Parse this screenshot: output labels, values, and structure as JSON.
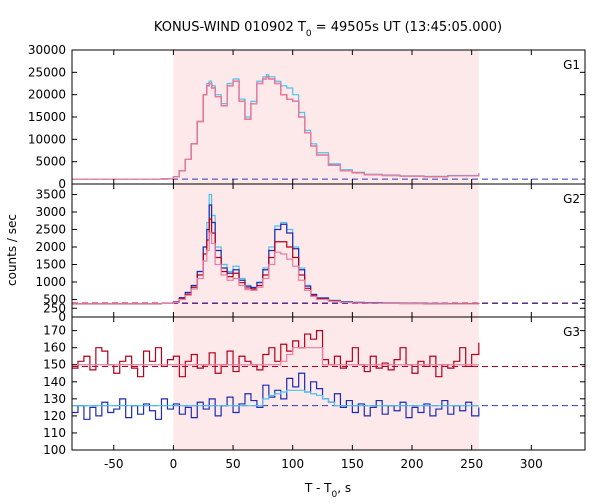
{
  "title_main": "KONUS-WIND 010902 T",
  "title_sub": "0",
  "title_rest": " = 49505s UT (13:45:05.000)",
  "ylabel": "counts / sec",
  "xlabel_main": "T - T",
  "xlabel_sub": "0",
  "xlabel_rest": ", s",
  "colors": {
    "shade": "#fde8ea",
    "cyan": "#4cc3ec",
    "red": "#b3001b",
    "pink": "#ea7fa5",
    "blue": "#1d2bb0",
    "dashed_blue": "#2a3fb8",
    "dashed_red": "#b3001b"
  },
  "chart_data": {
    "type": "line",
    "xlim": [
      -85,
      345
    ],
    "xticks": [
      -50,
      0,
      50,
      100,
      150,
      200,
      250,
      300
    ],
    "xtick_labels": [
      "-50",
      "0",
      "50",
      "100",
      "150",
      "200",
      "250",
      "300"
    ],
    "shaded_interval": [
      0,
      256
    ],
    "panels": [
      {
        "label": "G1",
        "ylim": [
          0,
          30000
        ],
        "yticks": [
          0,
          5000,
          10000,
          15000,
          20000,
          25000,
          30000
        ],
        "ytick_labels": [
          "0",
          "5000",
          "10000",
          "15000",
          "20000",
          "25000",
          "30000"
        ],
        "background_level": 1100,
        "x": [
          -85,
          -10,
          0,
          5,
          10,
          15,
          20,
          25,
          28,
          30,
          32,
          35,
          40,
          45,
          50,
          55,
          60,
          65,
          70,
          75,
          78,
          80,
          85,
          90,
          95,
          100,
          105,
          110,
          115,
          120,
          130,
          140,
          150,
          160,
          175,
          190,
          210,
          230,
          256
        ],
        "series": [
          {
            "name": "",
            "color": "cyan",
            "values": [
              1100,
              1200,
              1600,
              3000,
              5500,
              9000,
              14000,
              20000,
              22500,
              23000,
              22000,
              20000,
              18000,
              22500,
              23500,
              19000,
              15000,
              18500,
              23000,
              24000,
              24500,
              24000,
              23000,
              22000,
              21500,
              20000,
              16000,
              12000,
              9000,
              7000,
              4500,
              3200,
              2600,
              2200,
              2000,
              1800,
              1700,
              1900,
              2400
            ]
          },
          {
            "name": "",
            "color": "red",
            "values": [
              1100,
              1200,
              1600,
              3000,
              5500,
              9000,
              14000,
              20000,
              22000,
              22500,
              21500,
              19500,
              17500,
              22000,
              23000,
              18500,
              14500,
              18000,
              22500,
              23500,
              24000,
              23500,
              22500,
              20000,
              19000,
              18500,
              15000,
              11500,
              8500,
              6500,
              4200,
              3000,
              2500,
              2100,
              1900,
              1700,
              1600,
              1800,
              2300
            ]
          },
          {
            "name": "",
            "color": "pink",
            "values": [
              1100,
              1200,
              1600,
              3000,
              5500,
              9000,
              14000,
              20000,
              22000,
              22500,
              21500,
              19500,
              17500,
              22000,
              23000,
              18500,
              14500,
              18000,
              22500,
              23500,
              24000,
              23500,
              22500,
              20000,
              19000,
              18500,
              15000,
              11500,
              8500,
              6500,
              4200,
              3000,
              2500,
              2100,
              1900,
              1700,
              1600,
              1800,
              2300
            ]
          }
        ],
        "dashed": [
          {
            "color": "dashed_blue",
            "y": 1100
          }
        ]
      },
      {
        "label": "G2",
        "ylim": [
          0,
          3800
        ],
        "yticks": [
          0,
          250,
          500,
          1000,
          1500,
          2000,
          2500,
          3000,
          3500
        ],
        "ytick_labels": [
          "0",
          "250",
          "500",
          "1000",
          "1500",
          "2000",
          "2500",
          "3000",
          "3500"
        ],
        "x": [
          -85,
          -10,
          0,
          5,
          10,
          15,
          20,
          25,
          28,
          30,
          32,
          35,
          40,
          45,
          50,
          55,
          60,
          65,
          70,
          75,
          80,
          85,
          90,
          95,
          100,
          105,
          110,
          115,
          120,
          130,
          140,
          150,
          160,
          175,
          190,
          210,
          230,
          256
        ],
        "series": [
          {
            "name": "",
            "color": "cyan",
            "values": [
              380,
              390,
              430,
              550,
              700,
              900,
              1300,
              2000,
              2700,
              3500,
              2900,
              2000,
              1500,
              1300,
              1450,
              1100,
              900,
              850,
              1000,
              1400,
              2000,
              2600,
              2700,
              2500,
              2000,
              1400,
              900,
              650,
              550,
              480,
              440,
              420,
              410,
              400,
              395,
              390,
              385,
              380
            ]
          },
          {
            "name": "",
            "color": "blue",
            "values": [
              380,
              390,
              430,
              550,
              700,
              900,
              1300,
              2000,
              2500,
              3200,
              2700,
              1900,
              1400,
              1250,
              1350,
              1050,
              880,
              840,
              980,
              1350,
              1900,
              2500,
              2650,
              2400,
              1950,
              1350,
              880,
              640,
              540,
              470,
              430,
              415,
              405,
              395,
              390,
              385,
              380,
              378
            ]
          },
          {
            "name": "",
            "color": "red",
            "values": [
              380,
              390,
              420,
              520,
              650,
              850,
              1200,
              1800,
              2200,
              2800,
              2400,
              1700,
              1300,
              1150,
              1250,
              980,
              830,
              800,
              900,
              1200,
              1700,
              2150,
              2150,
              2000,
              1700,
              1200,
              820,
              620,
              520,
              460,
              420,
              405,
              398,
              390,
              386,
              382,
              378,
              376
            ]
          },
          {
            "name": "",
            "color": "pink",
            "values": [
              380,
              390,
              410,
              500,
              620,
              800,
              1100,
              1600,
              1900,
              2400,
              2100,
              1500,
              1200,
              1050,
              1100,
              900,
              780,
              760,
              850,
              1100,
              1500,
              1850,
              1800,
              1650,
              1450,
              1050,
              760,
              590,
              500,
              450,
              415,
              400,
              395,
              388,
              384,
              380,
              376,
              374
            ]
          }
        ],
        "dashed": [
          {
            "color": "dashed_red",
            "y": 400
          },
          {
            "color": "dashed_blue",
            "y": 385
          }
        ]
      },
      {
        "label": "G3",
        "ylim": [
          100,
          178
        ],
        "yticks": [
          100,
          110,
          120,
          130,
          140,
          150,
          160,
          170
        ],
        "ytick_labels": [
          "100",
          "110",
          "120",
          "130",
          "140",
          "150",
          "160",
          "170"
        ],
        "x": [
          -85,
          -80,
          -75,
          -70,
          -65,
          -60,
          -55,
          -50,
          -45,
          -40,
          -35,
          -30,
          -25,
          -20,
          -15,
          -10,
          -5,
          0,
          5,
          10,
          15,
          20,
          25,
          30,
          35,
          40,
          45,
          50,
          55,
          60,
          65,
          70,
          75,
          80,
          85,
          90,
          95,
          100,
          105,
          110,
          115,
          120,
          125,
          130,
          135,
          140,
          145,
          150,
          155,
          160,
          165,
          170,
          175,
          180,
          185,
          190,
          195,
          200,
          205,
          210,
          215,
          220,
          225,
          230,
          235,
          240,
          245,
          250,
          256
        ],
        "series": [
          {
            "name": "",
            "color": "red",
            "values": [
              148,
              152,
              155,
              147,
              160,
              158,
              150,
              145,
              152,
              155,
              148,
              143,
              158,
              152,
              160,
              149,
              153,
              155,
              143,
              152,
              156,
              148,
              150,
              157,
              145,
              150,
              158,
              146,
              155,
              152,
              150,
              147,
              156,
              160,
              152,
              162,
              158,
              164,
              160,
              168,
              165,
              170,
              153,
              150,
              155,
              148,
              152,
              160,
              150,
              146,
              155,
              148,
              151,
              147,
              153,
              160,
              150,
              145,
              152,
              149,
              155,
              143,
              150,
              148,
              152,
              160,
              149,
              156,
              163
            ]
          },
          {
            "name": "",
            "color": "pink",
            "values": [
              150,
              150,
              150,
              150,
              150,
              150,
              150,
              150,
              150,
              150,
              150,
              150,
              150,
              150,
              150,
              150,
              150,
              150,
              150,
              150,
              150,
              150,
              150,
              150,
              150,
              150,
              150,
              150,
              150,
              150,
              150,
              150,
              150,
              150,
              150,
              152,
              156,
              160,
              160,
              160,
              160,
              160,
              150,
              150,
              150,
              150,
              150,
              150,
              150,
              150,
              150,
              150,
              150,
              150,
              150,
              150,
              150,
              150,
              150,
              150,
              150,
              150,
              150,
              150,
              150,
              150,
              150,
              150,
              150
            ]
          },
          {
            "name": "",
            "color": "blue",
            "values": [
              122,
              126,
              118,
              125,
              120,
              128,
              122,
              124,
              130,
              119,
              126,
              121,
              127,
              123,
              118,
              130,
              124,
              127,
              121,
              125,
              119,
              128,
              124,
              130,
              120,
              126,
              131,
              122,
              127,
              133,
              129,
              125,
              138,
              131,
              135,
              130,
              142,
              137,
              145,
              134,
              140,
              136,
              130,
              128,
              133,
              125,
              129,
              122,
              127,
              120,
              125,
              129,
              121,
              126,
              123,
              128,
              119,
              125,
              122,
              127,
              120,
              124,
              129,
              121,
              126,
              123,
              128,
              120,
              125
            ]
          },
          {
            "name": "",
            "color": "cyan",
            "values": [
              126,
              126,
              126,
              126,
              126,
              126,
              126,
              126,
              126,
              126,
              126,
              126,
              126,
              126,
              126,
              126,
              126,
              126,
              126,
              126,
              126,
              126,
              126,
              126,
              126,
              126,
              126,
              126,
              126,
              126,
              126,
              126,
              130,
              132,
              133,
              134,
              135,
              135,
              135,
              134,
              133,
              132,
              130,
              128,
              126,
              126,
              126,
              126,
              126,
              126,
              126,
              126,
              126,
              126,
              126,
              126,
              126,
              126,
              126,
              126,
              126,
              126,
              126,
              126,
              126,
              126,
              126,
              126,
              126
            ]
          }
        ],
        "dashed": [
          {
            "color": "dashed_red",
            "y": 149
          },
          {
            "color": "dashed_blue",
            "y": 126
          }
        ]
      }
    ]
  }
}
